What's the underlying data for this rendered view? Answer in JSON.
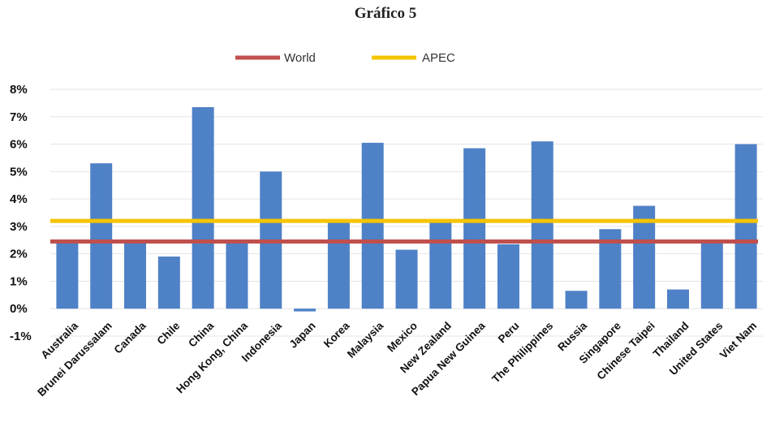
{
  "title": "Gráfico 5",
  "chart_data": {
    "type": "bar",
    "categories": [
      "Australia",
      "Brunei Darussalam",
      "Canada",
      "Chile",
      "China",
      "Hong Kong, China",
      "Indonesia",
      "Japan",
      "Korea",
      "Malaysia",
      "Mexico",
      "New Zealand",
      "Papua New Guinea",
      "Peru",
      "The Philippines",
      "Russia",
      "Singapore",
      "Chinese Taipei",
      "Thailand",
      "United States",
      "Viet Nam"
    ],
    "values": [
      2.5,
      5.3,
      2.5,
      1.9,
      7.35,
      2.5,
      5.0,
      -0.1,
      3.15,
      6.05,
      2.15,
      3.15,
      5.85,
      2.35,
      6.1,
      0.65,
      2.9,
      3.75,
      0.7,
      2.45,
      6.0
    ],
    "reference_lines": [
      {
        "name": "World",
        "value": 2.45,
        "color": "#c0504d"
      },
      {
        "name": "APEC",
        "value": 3.2,
        "color": "#f5c400"
      }
    ],
    "yticks": [
      "8%",
      "7%",
      "6%",
      "5%",
      "4%",
      "3%",
      "2%",
      "1%",
      "0%",
      "-1%"
    ],
    "ylim": [
      -1,
      8
    ],
    "legend_position": "top",
    "grid": true,
    "bar_color": "#4f81c7"
  }
}
